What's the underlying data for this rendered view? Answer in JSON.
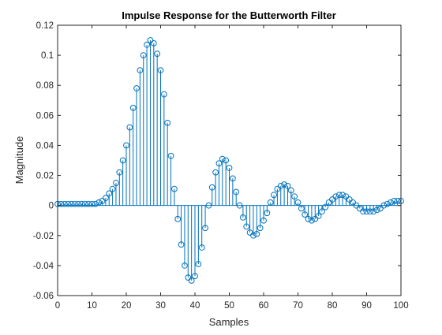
{
  "chart_data": {
    "type": "stem",
    "title": "Impulse Response for the Butterworth Filter",
    "xlabel": "Samples",
    "ylabel": "Magnitude",
    "xlim": [
      0,
      100
    ],
    "ylim": [
      -0.06,
      0.12
    ],
    "xticks": [
      "0",
      "10",
      "20",
      "30",
      "40",
      "50",
      "60",
      "70",
      "80",
      "90",
      "100"
    ],
    "yticks": [
      "-0.06",
      "-0.04",
      "-0.02",
      "0",
      "0.02",
      "0.04",
      "0.06",
      "0.08",
      "0.1",
      "0.12"
    ],
    "grid": false,
    "series_color": "#0072BD",
    "x": [
      0,
      1,
      2,
      3,
      4,
      5,
      6,
      7,
      8,
      9,
      10,
      11,
      12,
      13,
      14,
      15,
      16,
      17,
      18,
      19,
      20,
      21,
      22,
      23,
      24,
      25,
      26,
      27,
      28,
      29,
      30,
      31,
      32,
      33,
      34,
      35,
      36,
      37,
      38,
      39,
      40,
      41,
      42,
      43,
      44,
      45,
      46,
      47,
      48,
      49,
      50,
      51,
      52,
      53,
      54,
      55,
      56,
      57,
      58,
      59,
      60,
      61,
      62,
      63,
      64,
      65,
      66,
      67,
      68,
      69,
      70,
      71,
      72,
      73,
      74,
      75,
      76,
      77,
      78,
      79,
      80,
      81,
      82,
      83,
      84,
      85,
      86,
      87,
      88,
      89,
      90,
      91,
      92,
      93,
      94,
      95,
      96,
      97,
      98,
      99,
      100
    ],
    "y": [
      0.001,
      0.001,
      0.001,
      0.001,
      0.001,
      0.001,
      0.001,
      0.001,
      0.001,
      0.001,
      0.001,
      0.001,
      0.002,
      0.003,
      0.005,
      0.008,
      0.011,
      0.015,
      0.022,
      0.03,
      0.04,
      0.052,
      0.065,
      0.078,
      0.09,
      0.1,
      0.107,
      0.11,
      0.108,
      0.101,
      0.09,
      0.074,
      0.055,
      0.033,
      0.011,
      -0.009,
      -0.026,
      -0.04,
      -0.048,
      -0.05,
      -0.047,
      -0.039,
      -0.028,
      -0.015,
      0.0,
      0.012,
      0.022,
      0.028,
      0.031,
      0.03,
      0.025,
      0.018,
      0.009,
      0.0,
      -0.008,
      -0.014,
      -0.018,
      -0.02,
      -0.019,
      -0.015,
      -0.01,
      -0.005,
      0.002,
      0.007,
      0.011,
      0.013,
      0.014,
      0.013,
      0.01,
      0.006,
      0.002,
      -0.002,
      -0.006,
      -0.009,
      -0.01,
      -0.009,
      -0.007,
      -0.004,
      -0.001,
      0.002,
      0.004,
      0.006,
      0.007,
      0.007,
      0.006,
      0.004,
      0.002,
      0.0,
      -0.002,
      -0.004,
      -0.004,
      -0.004,
      -0.004,
      -0.003,
      -0.002,
      0.0,
      0.001,
      0.002,
      0.003,
      0.003,
      0.003
    ]
  }
}
